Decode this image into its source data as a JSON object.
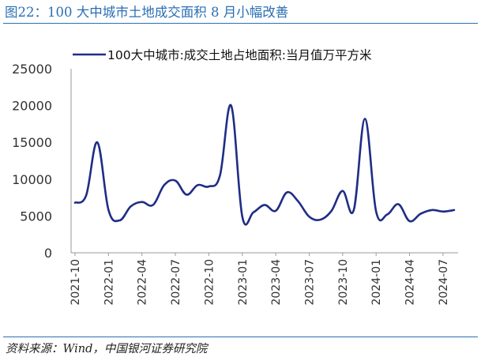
{
  "header": {
    "title": "图22：100 大中城市土地成交面积 8 月小幅改善"
  },
  "footer": {
    "source": "资料来源：Wind，中国银河证券研究院"
  },
  "colors": {
    "series": "#1f2d86",
    "title": "#2a6fb3",
    "axis": "#9a9a9a"
  },
  "chart_data": {
    "type": "line",
    "title": "",
    "xlabel": "",
    "ylabel": "",
    "ylim": [
      0,
      25000
    ],
    "yticks": [
      "25000",
      "20000",
      "15000",
      "10000",
      "5000",
      "0"
    ],
    "ytick_values": [
      25000,
      20000,
      15000,
      10000,
      5000,
      0
    ],
    "xtick_labels": [
      "2021-10",
      "2022-01",
      "2022-04",
      "2022-07",
      "2022-10",
      "2023-01",
      "2023-04",
      "2023-07",
      "2023-10",
      "2024-01",
      "2024-04",
      "2024-07"
    ],
    "grid": false,
    "legend_position": "top",
    "x": [
      "2021-10",
      "2021-11",
      "2021-12",
      "2022-01",
      "2022-02",
      "2022-03",
      "2022-04",
      "2022-05",
      "2022-06",
      "2022-07",
      "2022-08",
      "2022-09",
      "2022-10",
      "2022-11",
      "2022-12",
      "2023-01",
      "2023-02",
      "2023-03",
      "2023-04",
      "2023-05",
      "2023-06",
      "2023-07",
      "2023-08",
      "2023-09",
      "2023-10",
      "2023-11",
      "2023-12",
      "2024-01",
      "2024-02",
      "2024-03",
      "2024-04",
      "2024-05",
      "2024-06",
      "2024-07",
      "2024-08"
    ],
    "series": [
      {
        "name": "100大中城市:成交土地占地面积:当月值万平方米",
        "values": [
          6800,
          7800,
          15000,
          5800,
          4400,
          6300,
          6900,
          6500,
          9200,
          9800,
          7900,
          9200,
          9000,
          10500,
          20000,
          4900,
          5500,
          6500,
          5700,
          8200,
          7000,
          4900,
          4500,
          5700,
          8400,
          5800,
          18200,
          5600,
          5200,
          6600,
          4300,
          5300,
          5800,
          5600,
          5800
        ]
      }
    ]
  }
}
